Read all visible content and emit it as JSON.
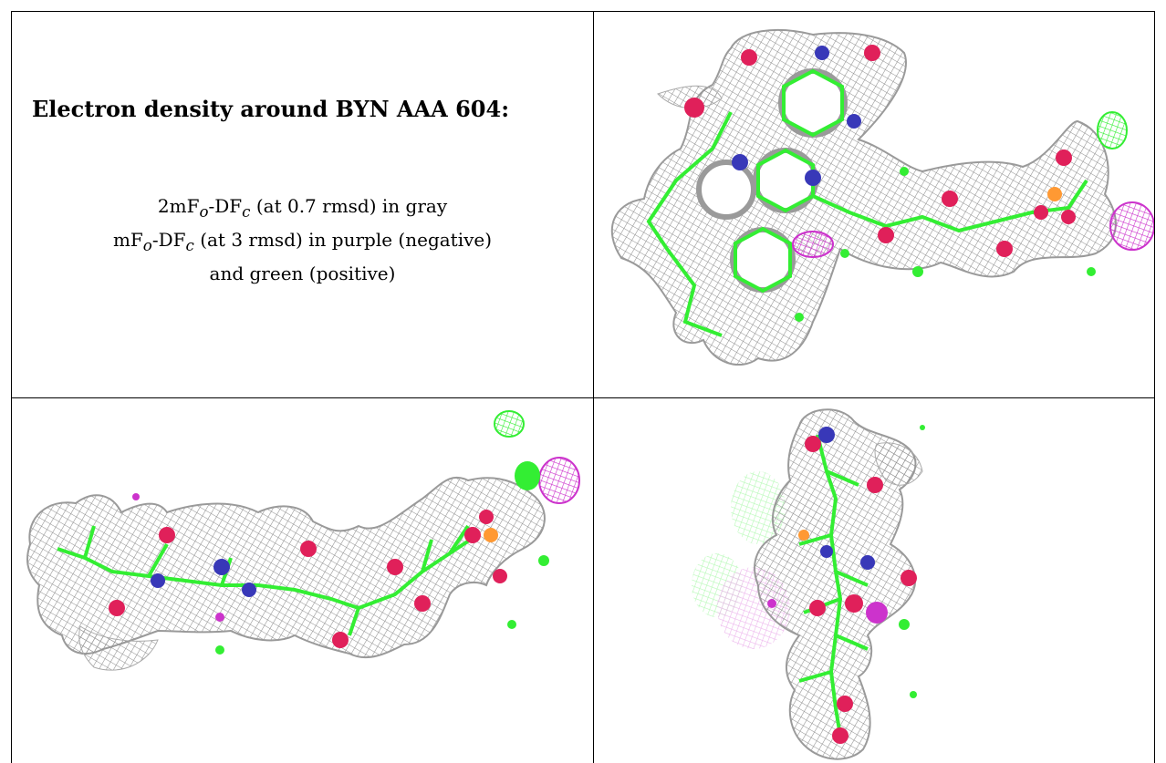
{
  "heading": "Electron density around BYN AAA 604:",
  "legend": {
    "line1": {
      "prefix": "2mF",
      "sub1": "o",
      "mid": "-DF",
      "sub2": "c",
      "suffix": " (at 0.7 rmsd) in gray"
    },
    "line2": {
      "prefix": "mF",
      "sub1": "o",
      "mid": "-DF",
      "sub2": "c",
      "suffix": " (at 3 rmsd) in purple (negative)"
    },
    "line3": "and green (positive)"
  },
  "colors": {
    "mesh": "#8f8f8f",
    "carbon": "#33ee33",
    "nitrogen": "#3838b8",
    "oxygen": "#e0205a",
    "phosphorus": "#ff9933",
    "negative": "#cc33cc",
    "positive": "#33ee33"
  }
}
